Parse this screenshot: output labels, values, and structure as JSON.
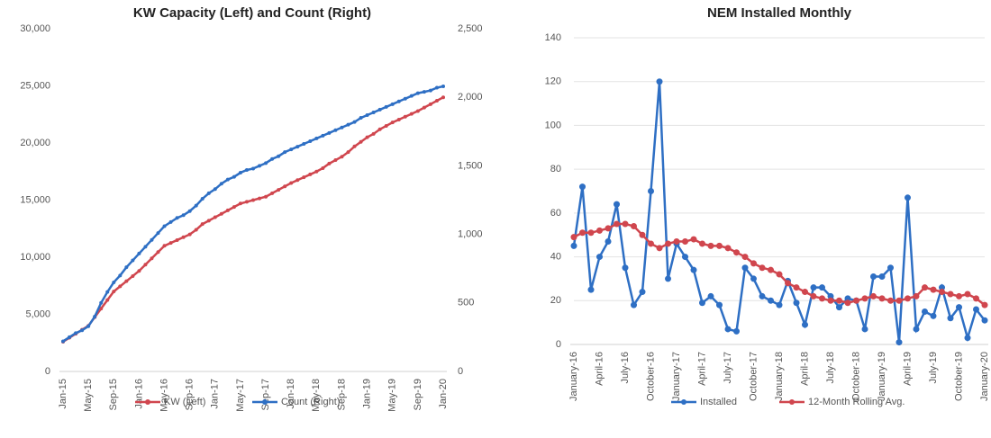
{
  "chart_data": [
    {
      "type": "line",
      "title": "KW Capacity (Left) and Count (Right)",
      "categories": [
        "Jan-15",
        null,
        null,
        null,
        "May-15",
        null,
        null,
        null,
        "Sep-15",
        null,
        null,
        null,
        "Jan-16",
        null,
        null,
        null,
        "May-16",
        null,
        null,
        null,
        "Sep-16",
        null,
        null,
        null,
        "Jan-17",
        null,
        null,
        null,
        "May-17",
        null,
        null,
        null,
        "Sep-17",
        null,
        null,
        null,
        "Jan-18",
        null,
        null,
        null,
        "May-18",
        null,
        null,
        null,
        "Sep-18",
        null,
        null,
        null,
        "Jan-19",
        null,
        null,
        null,
        "May-19",
        null,
        null,
        null,
        "Sep-19",
        null,
        null,
        null,
        "Jan-20"
      ],
      "series": [
        {
          "name": "KW (Left)",
          "color": "#d0464e",
          "values": [
            2600,
            2950,
            3300,
            3650,
            4000,
            4750,
            5500,
            6250,
            7000,
            7450,
            7900,
            8350,
            8800,
            9350,
            9900,
            10450,
            11000,
            11250,
            11500,
            11750,
            12000,
            12400,
            12900,
            13200,
            13500,
            13800,
            14100,
            14400,
            14700,
            14850,
            15000,
            15150,
            15300,
            15600,
            15900,
            16200,
            16500,
            16750,
            17000,
            17250,
            17500,
            17800,
            18200,
            18500,
            18800,
            19200,
            19700,
            20100,
            20500,
            20800,
            21200,
            21500,
            21800,
            22050,
            22300,
            22550,
            22800,
            23100,
            23400,
            23700,
            24000
          ]
        },
        {
          "name": "Count (Right)",
          "color": "#2e6fc4",
          "axis": "y2",
          "values": [
            220,
            250,
            280,
            300,
            330,
            400,
            500,
            580,
            650,
            700,
            760,
            810,
            860,
            910,
            960,
            1010,
            1060,
            1090,
            1120,
            1140,
            1170,
            1210,
            1260,
            1300,
            1330,
            1370,
            1400,
            1420,
            1450,
            1470,
            1480,
            1500,
            1520,
            1550,
            1570,
            1600,
            1620,
            1640,
            1660,
            1680,
            1700,
            1720,
            1740,
            1760,
            1780,
            1800,
            1820,
            1850,
            1870,
            1890,
            1910,
            1930,
            1950,
            1970,
            1990,
            2010,
            2030,
            2040,
            2050,
            2070,
            2080
          ]
        }
      ],
      "ylim": [
        0,
        30000
      ],
      "yticks": [
        0,
        {
          "value": 5000,
          "label": "5,000"
        },
        {
          "value": 10000,
          "label": "10,000"
        },
        {
          "value": 15000,
          "label": "15,000"
        },
        {
          "value": 20000,
          "label": "20,000"
        },
        {
          "value": 25000,
          "label": "25,000"
        },
        {
          "value": 30000,
          "label": "30,000"
        }
      ],
      "y2lim": [
        0,
        2500
      ],
      "y2ticks": [
        0,
        500,
        {
          "value": 1000,
          "label": "1,000"
        },
        {
          "value": 1500,
          "label": "1,500"
        },
        {
          "value": 2000,
          "label": "2,000"
        },
        {
          "value": 2500,
          "label": "2,500"
        }
      ],
      "grid": false,
      "legend": "bottom"
    },
    {
      "type": "line",
      "title": "NEM Installed Monthly",
      "categories": [
        "January-16",
        null,
        null,
        "April-16",
        null,
        null,
        "July-16",
        null,
        null,
        "October-16",
        null,
        null,
        "January-17",
        null,
        null,
        "April-17",
        null,
        null,
        "July-17",
        null,
        null,
        "October-17",
        null,
        null,
        "January-18",
        null,
        null,
        "April-18",
        null,
        null,
        "July-18",
        null,
        null,
        "October-18",
        null,
        null,
        "January-19",
        null,
        null,
        "April-19",
        null,
        null,
        "July-19",
        null,
        null,
        "October-19",
        null,
        null,
        "January-20"
      ],
      "series": [
        {
          "name": "Installed",
          "color": "#2e6fc4",
          "values": [
            45,
            72,
            25,
            40,
            47,
            64,
            35,
            18,
            24,
            70,
            120,
            30,
            46,
            40,
            34,
            19,
            22,
            18,
            7,
            6,
            35,
            30,
            22,
            20,
            18,
            29,
            19,
            9,
            26,
            26,
            22,
            17,
            21,
            20,
            7,
            31,
            31,
            35,
            1,
            67,
            7,
            15,
            13,
            26,
            12,
            17,
            3,
            16,
            11
          ]
        },
        {
          "name": "12-Month Rolling Avg.",
          "color": "#d0464e",
          "values": [
            49,
            51,
            51,
            52,
            53,
            55,
            55,
            54,
            50,
            46,
            44,
            46,
            47,
            47,
            48,
            46,
            45,
            45,
            44,
            42,
            40,
            37,
            35,
            34,
            32,
            28,
            26,
            24,
            22,
            21,
            20,
            20,
            19,
            20,
            21,
            22,
            21,
            20,
            20,
            21,
            22,
            26,
            25,
            24,
            23,
            22,
            23,
            21,
            18
          ]
        }
      ],
      "ylim": [
        0,
        140
      ],
      "yticks": [
        0,
        20,
        40,
        60,
        80,
        100,
        120,
        140
      ],
      "grid": true,
      "legend": "bottom"
    }
  ]
}
